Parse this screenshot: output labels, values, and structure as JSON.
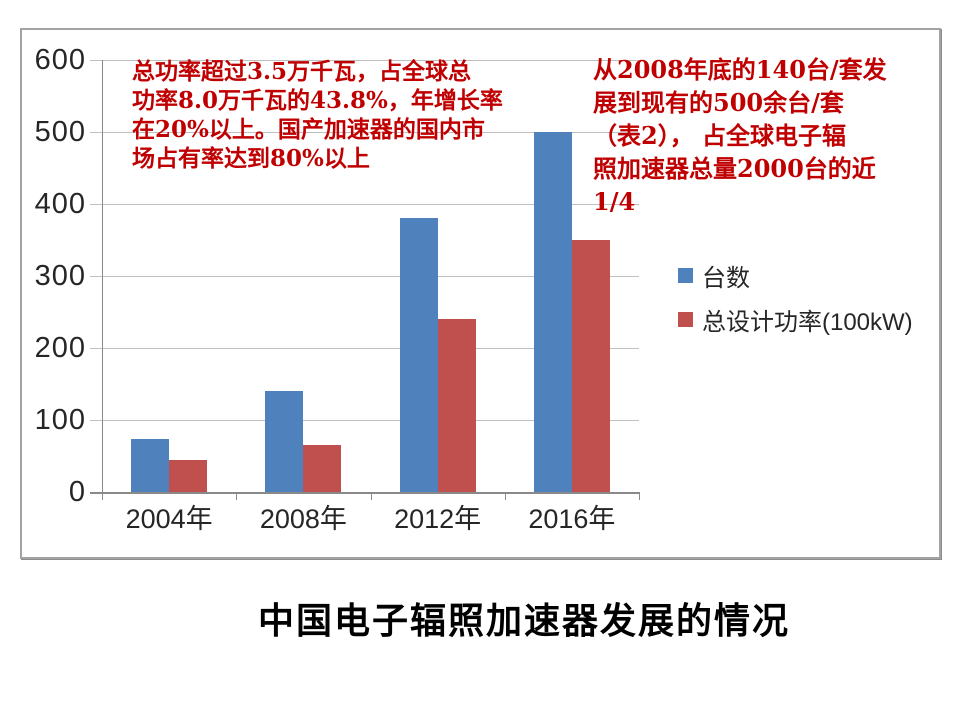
{
  "slide_title": "中国电子辐照加速器发展的情况",
  "annotations": {
    "left": {
      "full_text": "总功率超过3.5万千瓦，占全球总功率8.0万千瓦的43.8%，年增长率在20%以上。国产加速器的国内市场占有率达到80%以上",
      "lines": [
        "总功率超过3.5万千瓦，占全球总",
        "功率8.0万千瓦的43.8%，年增长率",
        "在20%以上。国产加速器的国内市",
        "场占有率达到80%以上"
      ]
    },
    "right": {
      "full_text": "从2008年底的140台/套发展到现有的500余台/套（表2），占全球电子辐照加速器总量2000台的近1/4",
      "lines": [
        "从2008年底的140台/套发",
        "展到现有的500余台/套",
        "（表2）， 占全球电子辐",
        "照加速器总量2000台的近",
        "1/4"
      ]
    }
  },
  "chart_data": {
    "type": "bar",
    "title": "",
    "xlabel": "",
    "ylabel": "",
    "categories": [
      "2004年",
      "2008年",
      "2012年",
      "2016年"
    ],
    "series": [
      {
        "name": "台数",
        "color": "#4F81BD",
        "values": [
          73,
          140,
          380,
          500
        ]
      },
      {
        "name": "总设计功率(100kW)",
        "color": "#C0504D",
        "values": [
          45,
          65,
          240,
          350
        ]
      }
    ],
    "ylim": [
      0,
      600
    ],
    "yticks": [
      0,
      100,
      200,
      300,
      400,
      500,
      600
    ],
    "grid": true,
    "legend_position": "right"
  },
  "colors": {
    "annotation_red": "#C00000",
    "series_blue": "#4F81BD",
    "series_red": "#C0504D",
    "gridline": "#BFBFBF",
    "axis": "#898989",
    "frame_border": "#A3A3A3",
    "label_text": "#262626"
  }
}
